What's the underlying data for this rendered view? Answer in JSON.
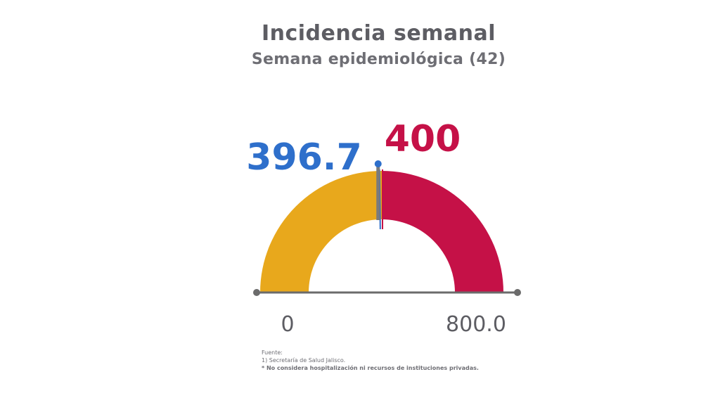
{
  "title": "Incidencia semanal",
  "subtitle": "Semana epidemiológica (42)",
  "chart_data": {
    "type": "gauge",
    "min": 0,
    "max": 800.0,
    "min_label": "0",
    "max_label": "800.0",
    "value": 396.7,
    "value_label": "396.7",
    "threshold": 400,
    "threshold_label": "400",
    "colors": {
      "below_threshold": "#e8a81c",
      "above_threshold": "#c51147",
      "value": "#2e6fcb",
      "threshold": "#c51147",
      "axis": "#6b6b6b"
    }
  },
  "footer": {
    "source_label": "Fuente:",
    "source": "1) Secretaría de Salud Jalisco.",
    "note": "* No considera hospitalización ni recursos de instituciones privadas."
  }
}
